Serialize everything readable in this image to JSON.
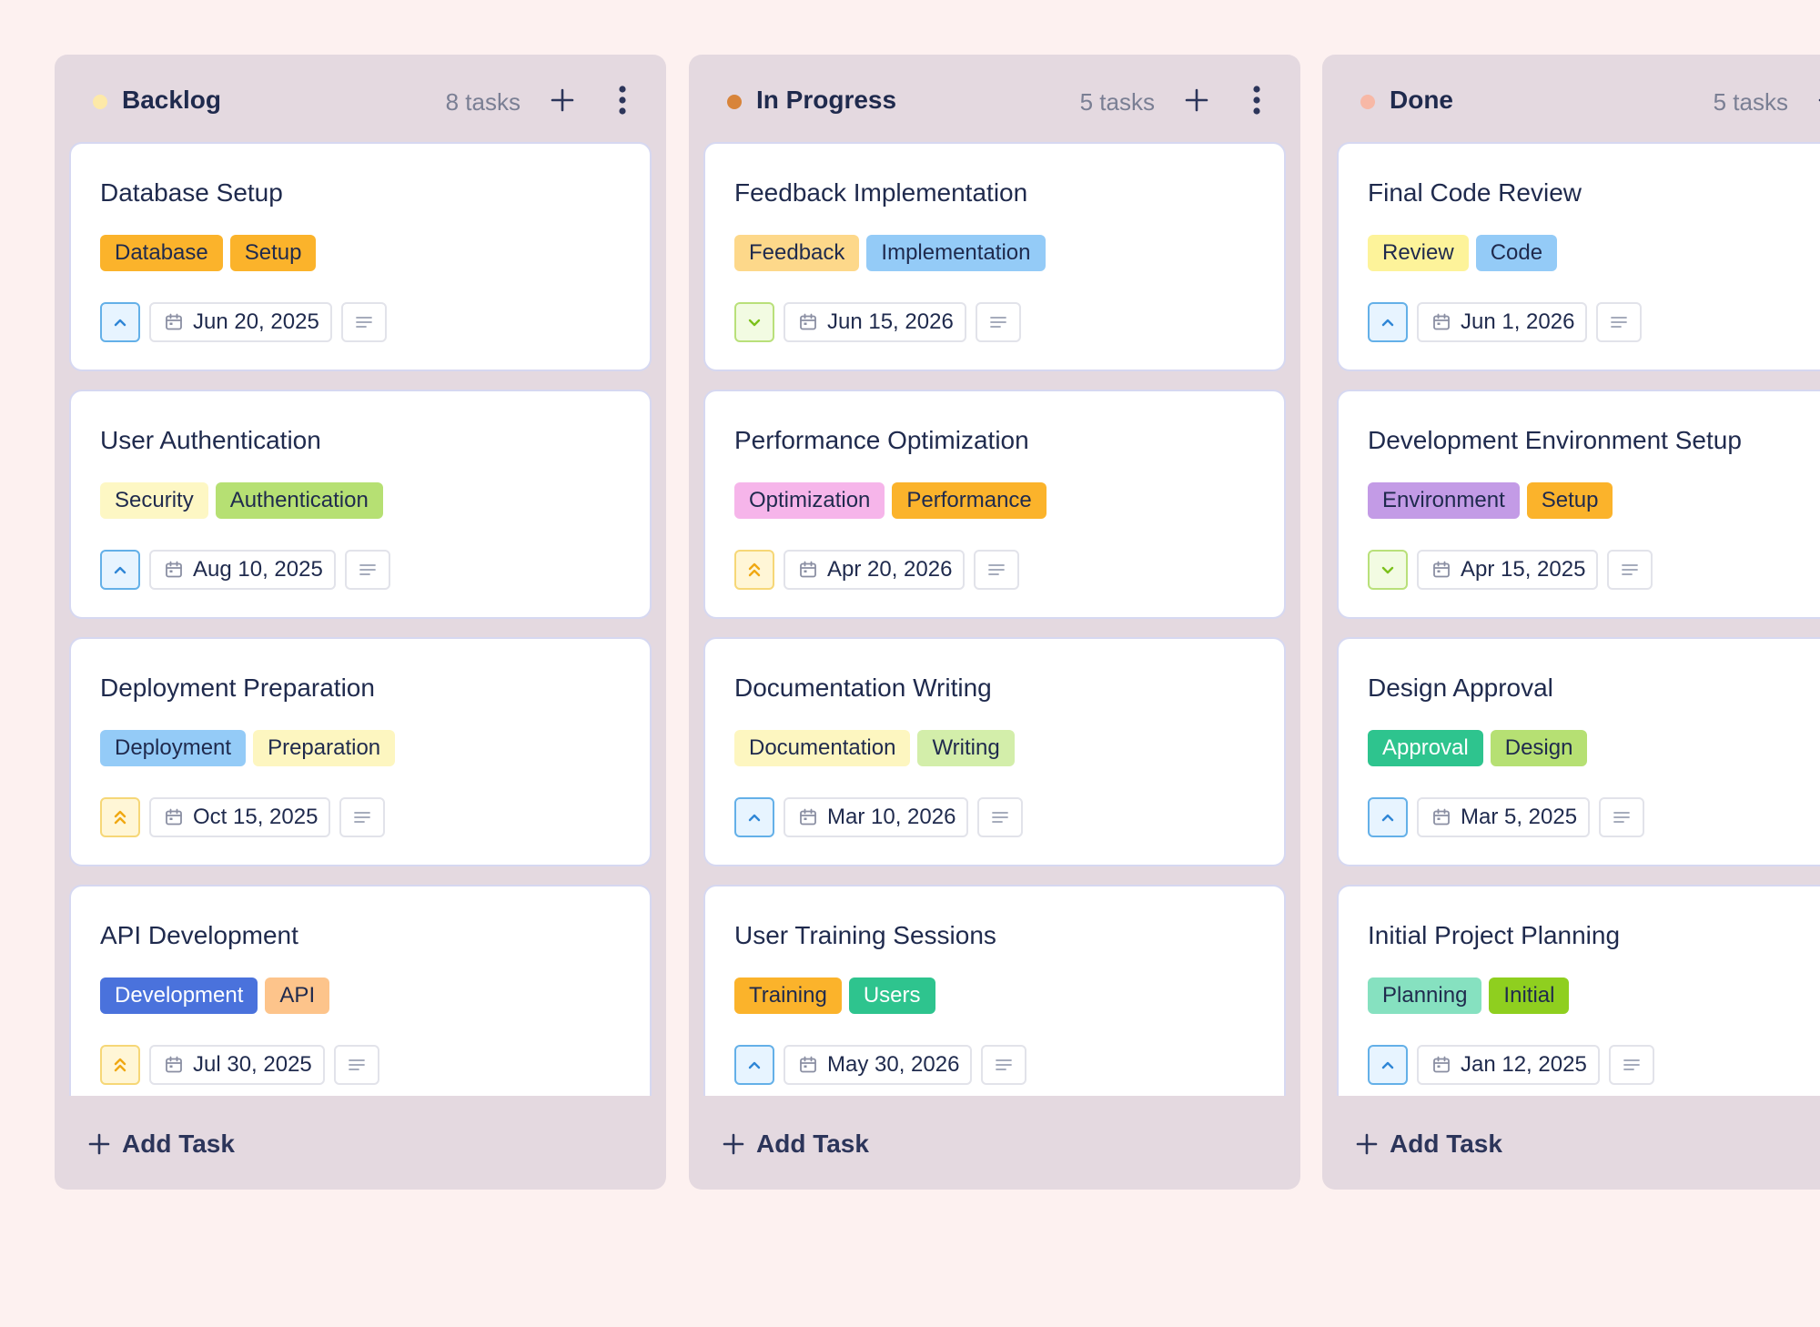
{
  "columns": [
    {
      "title": "Backlog",
      "count": "8 tasks",
      "dot_color": "#fde9a8",
      "add_task_label": "Add Task",
      "cards": [
        {
          "title": "Database Setup",
          "tags": [
            {
              "label": "Database",
              "bg": "#fbb32b",
              "fg": "#1f2a4d"
            },
            {
              "label": "Setup",
              "bg": "#fbb32b",
              "fg": "#1f2a4d"
            }
          ],
          "priority": "high",
          "priority_icon": "chevron-up-icon",
          "date": "Jun 20, 2025"
        },
        {
          "title": "User Authentication",
          "tags": [
            {
              "label": "Security",
              "bg": "#fdf7c4",
              "fg": "#1f2a4d"
            },
            {
              "label": "Authentication",
              "bg": "#b6e073",
              "fg": "#1f2a4d"
            }
          ],
          "priority": "high",
          "priority_icon": "chevron-up-icon",
          "date": "Aug 10, 2025"
        },
        {
          "title": "Deployment Preparation",
          "tags": [
            {
              "label": "Deployment",
              "bg": "#94cbf7",
              "fg": "#1f2a4d"
            },
            {
              "label": "Preparation",
              "bg": "#fdf6c0",
              "fg": "#1f2a4d"
            }
          ],
          "priority": "urgent",
          "priority_icon": "double-chevron-up-icon",
          "date": "Oct 15, 2025"
        },
        {
          "title": "API Development",
          "tags": [
            {
              "label": "Development",
              "bg": "#4a72dc",
              "fg": "#ffffff"
            },
            {
              "label": "API",
              "bg": "#fdc48b",
              "fg": "#1f2a4d"
            }
          ],
          "priority": "urgent",
          "priority_icon": "double-chevron-up-icon",
          "date": "Jul 30, 2025"
        }
      ]
    },
    {
      "title": "In Progress",
      "count": "5 tasks",
      "dot_color": "#d8843a",
      "add_task_label": "Add Task",
      "cards": [
        {
          "title": "Feedback Implementation",
          "tags": [
            {
              "label": "Feedback",
              "bg": "#fdd88a",
              "fg": "#1f2a4d"
            },
            {
              "label": "Implementation",
              "bg": "#94cbf7",
              "fg": "#1f2a4d"
            }
          ],
          "priority": "low",
          "priority_icon": "chevron-down-icon",
          "date": "Jun 15, 2026"
        },
        {
          "title": "Performance Optimization",
          "tags": [
            {
              "label": "Optimization",
              "bg": "#f6b5ea",
              "fg": "#1f2a4d"
            },
            {
              "label": "Performance",
              "bg": "#fbb32b",
              "fg": "#1f2a4d"
            }
          ],
          "priority": "urgent",
          "priority_icon": "double-chevron-up-icon",
          "date": "Apr 20, 2026"
        },
        {
          "title": "Documentation Writing",
          "tags": [
            {
              "label": "Documentation",
              "bg": "#fdf6c0",
              "fg": "#1f2a4d"
            },
            {
              "label": "Writing",
              "bg": "#d3eeaa",
              "fg": "#1f2a4d"
            }
          ],
          "priority": "high",
          "priority_icon": "chevron-up-icon",
          "date": "Mar 10, 2026"
        },
        {
          "title": "User Training Sessions",
          "tags": [
            {
              "label": "Training",
              "bg": "#fbb32b",
              "fg": "#1f2a4d"
            },
            {
              "label": "Users",
              "bg": "#2ec48e",
              "fg": "#ffffff"
            }
          ],
          "priority": "high",
          "priority_icon": "chevron-up-icon",
          "date": "May 30, 2026"
        }
      ]
    },
    {
      "title": "Done",
      "count": "5 tasks",
      "dot_color": "#f7b8a6",
      "add_task_label": "Add Task",
      "cards": [
        {
          "title": "Final Code Review",
          "tags": [
            {
              "label": "Review",
              "bg": "#fdf39a",
              "fg": "#1f2a4d"
            },
            {
              "label": "Code",
              "bg": "#94cbf7",
              "fg": "#1f2a4d"
            }
          ],
          "priority": "high",
          "priority_icon": "chevron-up-icon",
          "date": "Jun 1, 2026"
        },
        {
          "title": "Development Environment Setup",
          "tags": [
            {
              "label": "Environment",
              "bg": "#c39be6",
              "fg": "#1f2a4d"
            },
            {
              "label": "Setup",
              "bg": "#fbb32b",
              "fg": "#1f2a4d"
            }
          ],
          "priority": "low",
          "priority_icon": "chevron-down-icon",
          "date": "Apr 15, 2025"
        },
        {
          "title": "Design Approval",
          "tags": [
            {
              "label": "Approval",
              "bg": "#2ec48e",
              "fg": "#ffffff"
            },
            {
              "label": "Design",
              "bg": "#b6e073",
              "fg": "#1f2a4d"
            }
          ],
          "priority": "high",
          "priority_icon": "chevron-up-icon",
          "date": "Mar 5, 2025"
        },
        {
          "title": "Initial Project Planning",
          "tags": [
            {
              "label": "Planning",
              "bg": "#86e1c0",
              "fg": "#1f2a4d"
            },
            {
              "label": "Initial",
              "bg": "#8fcf1f",
              "fg": "#1f2a4d"
            }
          ],
          "priority": "high",
          "priority_icon": "chevron-up-icon",
          "date": "Jan 12, 2025"
        }
      ]
    }
  ]
}
